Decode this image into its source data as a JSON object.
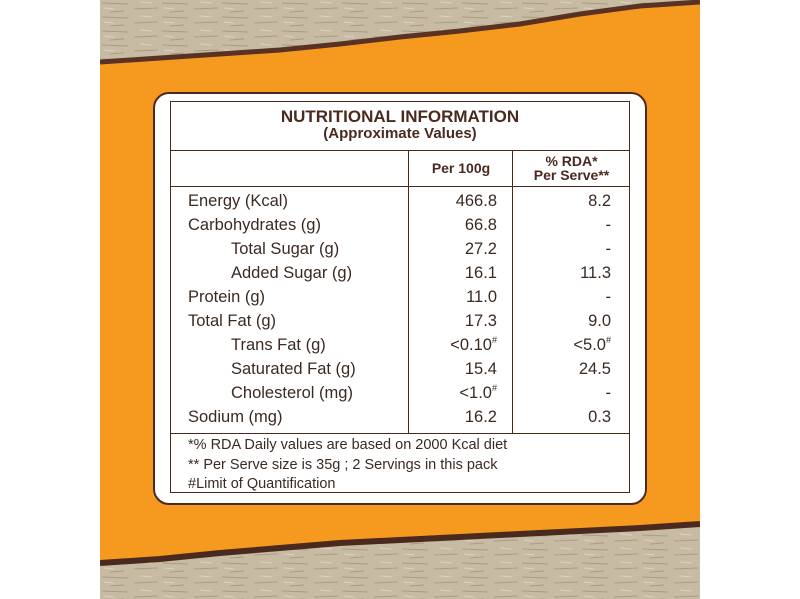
{
  "panel": {
    "title": "NUTRITIONAL INFORMATION",
    "subtitle": "(Approximate Values)",
    "col_per100": "Per 100g",
    "col_rda_line1": "% RDA*",
    "col_rda_line2": "Per Serve**"
  },
  "rows": [
    {
      "name": "Energy (Kcal)",
      "per100": "466.8",
      "rda": "8.2"
    },
    {
      "name": "Carbohydrates (g)",
      "per100": "66.8",
      "rda": "-"
    },
    {
      "name": "Total Sugar (g)",
      "per100": "27.2",
      "rda": "-"
    },
    {
      "name": "Added Sugar (g)",
      "per100": "16.1",
      "rda": "11.3"
    },
    {
      "name": "Protein (g)",
      "per100": "11.0",
      "rda": "-"
    },
    {
      "name": "Total Fat (g)",
      "per100": "17.3",
      "rda": "9.0"
    },
    {
      "name": "Trans Fat (g)",
      "per100": "<0.10",
      "rda": "<5.0"
    },
    {
      "name": "Saturated Fat (g)",
      "per100": "15.4",
      "rda": "24.5"
    },
    {
      "name": "Cholesterol (mg)",
      "per100": "<1.0",
      "rda": "-"
    },
    {
      "name": "Sodium (mg)",
      "per100": "16.2",
      "rda": "0.3"
    }
  ],
  "marks": {
    "hash": "#"
  },
  "footnotes": [
    "*% RDA Daily values are based on 2000 Kcal diet",
    "** Per Serve size is 35g ; 2 Servings in this pack",
    "#Limit of Quantification"
  ],
  "colors": {
    "orange": "#f59a1e",
    "brown": "#4a2a1e",
    "kraft": "#c9bca6"
  }
}
